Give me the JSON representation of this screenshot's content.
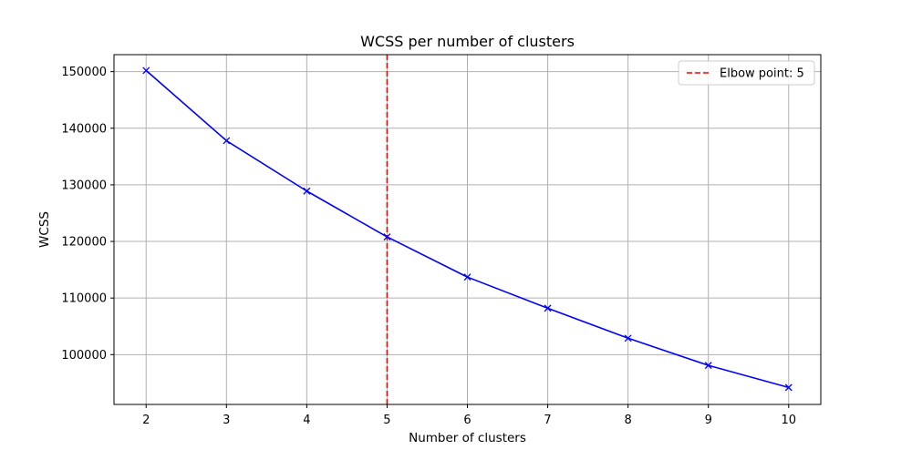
{
  "chart_data": {
    "type": "line",
    "title": "WCSS per number of clusters",
    "xlabel": "Number of clusters",
    "ylabel": "WCSS",
    "x": [
      2,
      3,
      4,
      5,
      6,
      7,
      8,
      9,
      10
    ],
    "series": [
      {
        "values": [
          150200,
          137800,
          128900,
          120800,
          113700,
          108200,
          102900,
          98100,
          94200
        ],
        "color": "#0000ff",
        "marker": "x"
      }
    ],
    "xlim": [
      1.6,
      10.4
    ],
    "ylim": [
      91200,
      153000
    ],
    "x_ticks": [
      2,
      3,
      4,
      5,
      6,
      7,
      8,
      9,
      10
    ],
    "y_ticks": [
      100000,
      110000,
      120000,
      130000,
      140000,
      150000
    ],
    "grid": true,
    "annotations": [
      {
        "type": "vline",
        "x": 5,
        "color": "#ff0000",
        "style": "dashed",
        "label": "Elbow point: 5"
      }
    ],
    "legend": {
      "placement": "top-right",
      "entries": [
        "Elbow point: 5"
      ]
    }
  }
}
